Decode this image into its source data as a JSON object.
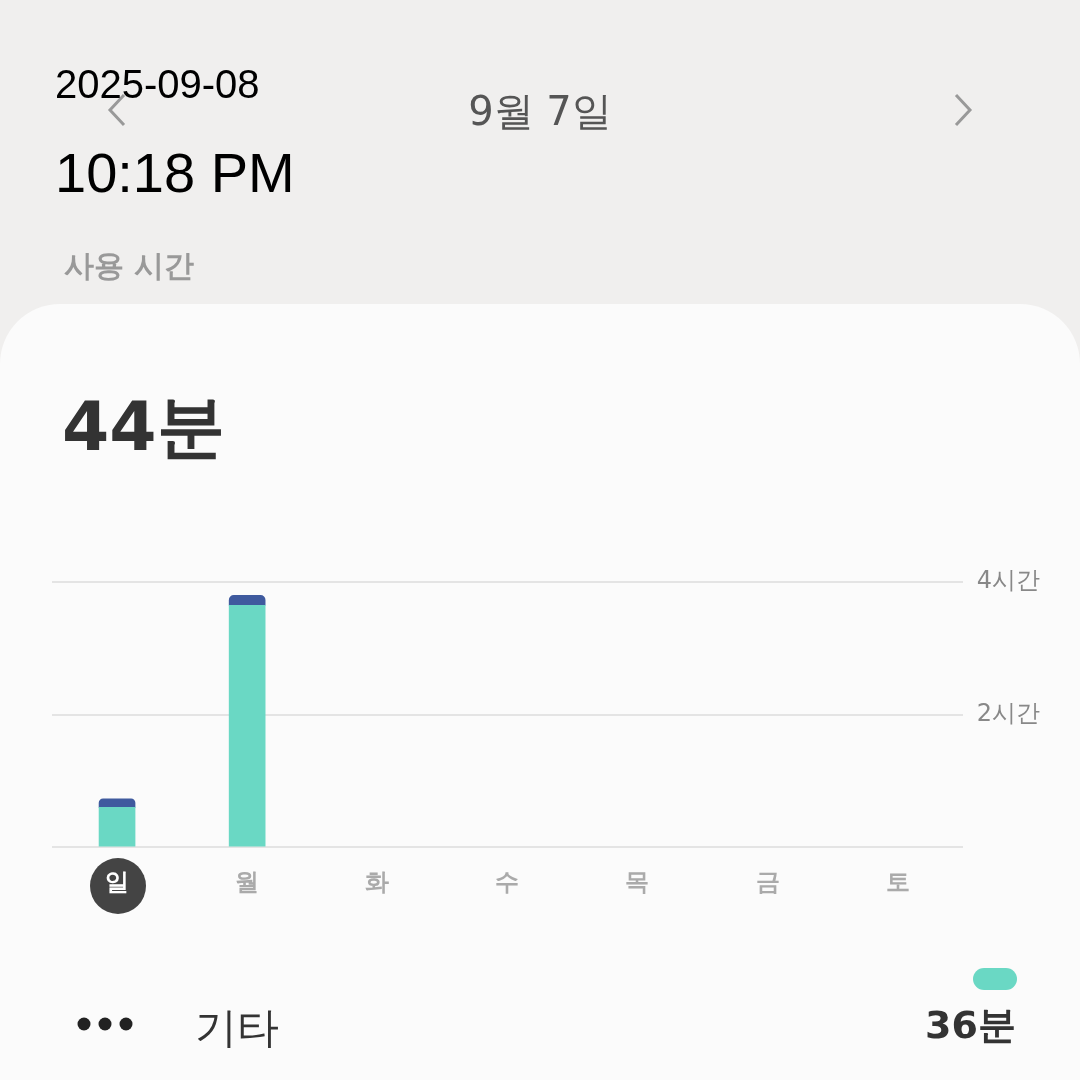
{
  "chart_data": {
    "type": "bar",
    "title": "9월 7일",
    "subtitle": "사용 시간",
    "annotations": [
      "2025-09-08",
      "10:18 PM",
      "44분",
      "36분"
    ],
    "categories": [
      "일",
      "월",
      "화",
      "수",
      "목",
      "금",
      "토"
    ],
    "series": [
      {
        "name": "기타",
        "color": "#6ad8c4",
        "values": [
          0.6,
          3.65,
          null,
          null,
          null,
          null,
          null
        ]
      },
      {
        "color": "#3f5a9e",
        "values": [
          0.13,
          0.15,
          null,
          null,
          null,
          null,
          null
        ]
      }
    ],
    "stacked": true,
    "ylim": [
      0,
      4
    ],
    "yticks": [
      {
        "value": 0,
        "label": null
      },
      {
        "value": 2,
        "label": "2시간"
      },
      {
        "value": 4,
        "label": "4시간"
      }
    ],
    "grid": "y",
    "legend": "bottom"
  }
}
